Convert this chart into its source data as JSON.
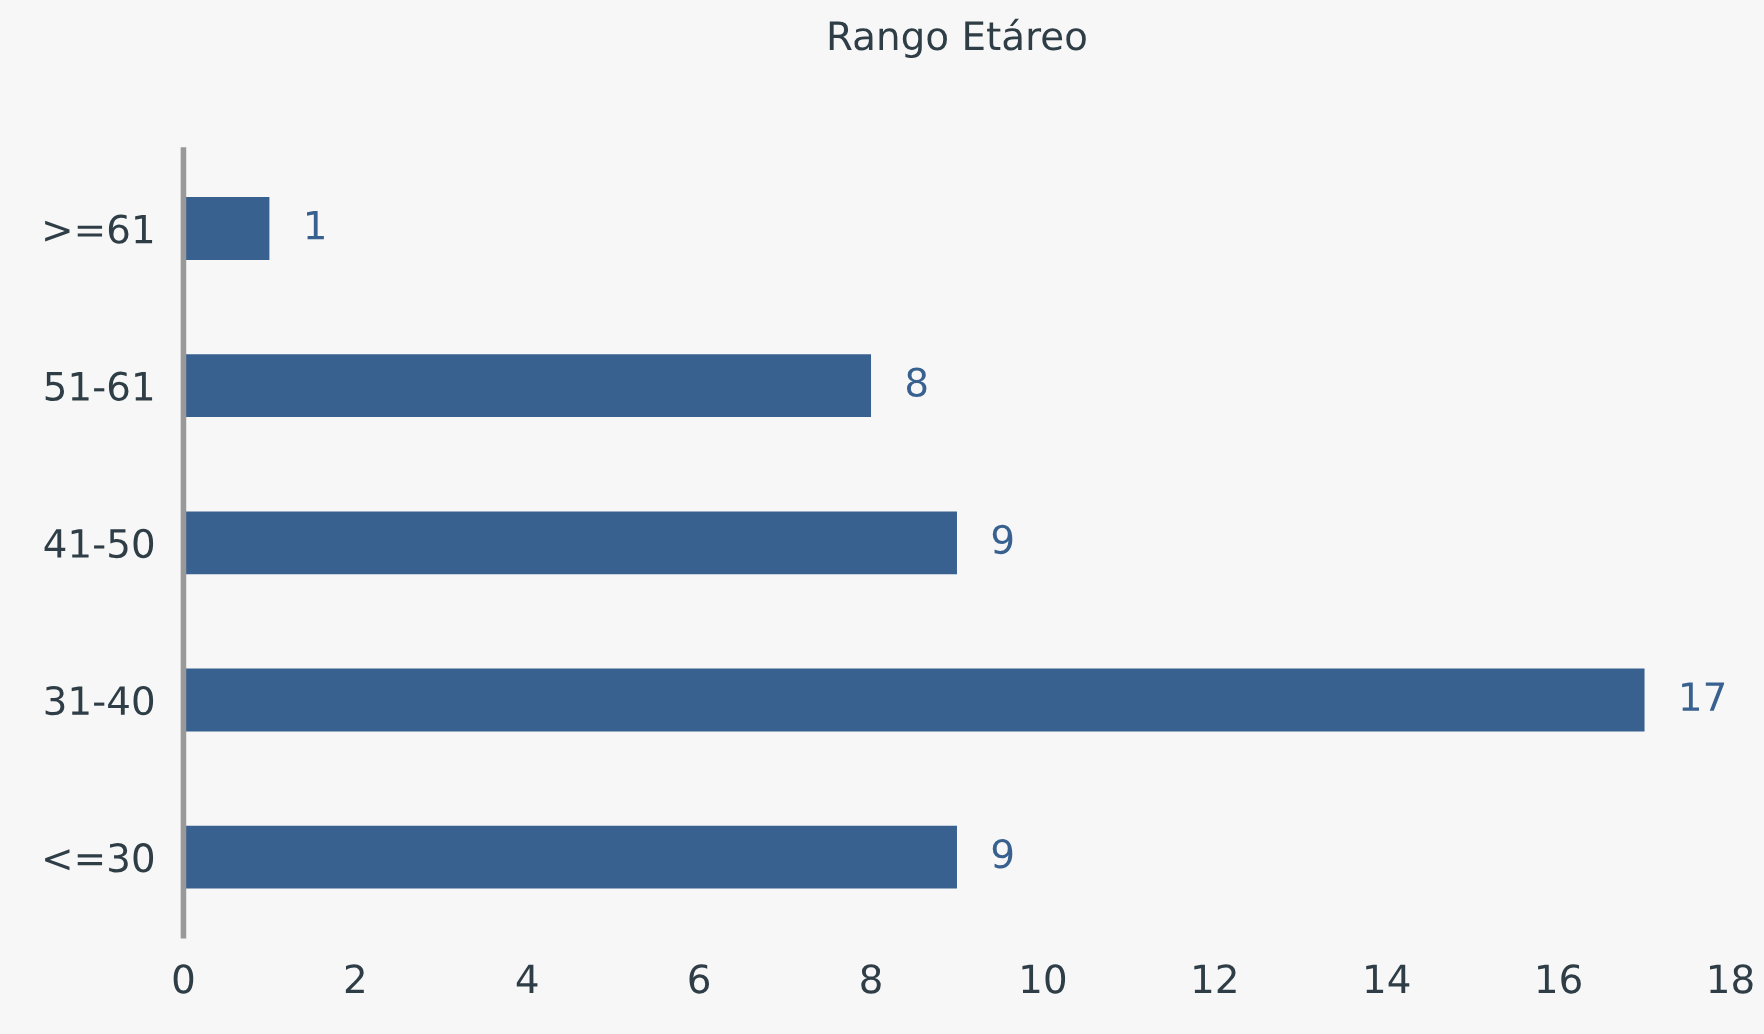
{
  "chart_data": {
    "type": "bar",
    "title": "Rango Etáreo",
    "orientation": "horizontal",
    "categories": [
      ">=61",
      "51-61",
      "41-50",
      "31-40",
      "<=30"
    ],
    "values": [
      1,
      8,
      9,
      17,
      9
    ],
    "color": "#38618f",
    "xlim": [
      0,
      18
    ],
    "xticks": [
      0,
      2,
      4,
      6,
      8,
      10,
      12,
      14,
      16,
      18
    ],
    "grid": false,
    "data_labels": true
  }
}
